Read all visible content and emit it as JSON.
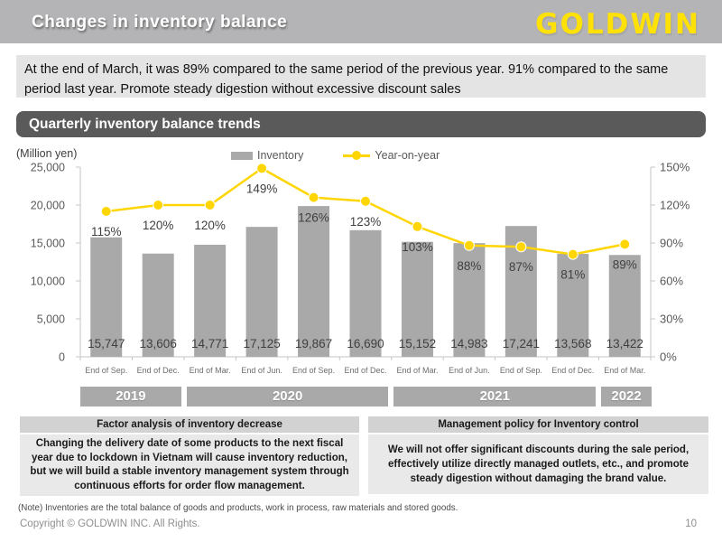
{
  "header": {
    "title": "Changes in inventory balance",
    "logo": "GOLDWIN"
  },
  "summary": {
    "text": "At the end of March, it was 89% compared to the same period of the previous year. 91% compared to the same period last year. Promote steady digestion without excessive discount sales"
  },
  "chart": {
    "title": "Quarterly inventory balance trends"
  },
  "chart_data": {
    "type": "bar+line",
    "title": "Quarterly inventory balance trends",
    "categories": [
      "End of Sep.",
      "End of Dec.",
      "End of Mar.",
      "End of Jun.",
      "End of Sep.",
      "End of Dec.",
      "End of Mar.",
      "End of Jun.",
      "End of Sep.",
      "End of Dec.",
      "End of Mar."
    ],
    "series": [
      {
        "name": "Inventory",
        "type": "bar",
        "axis": "left",
        "values": [
          15747,
          13606,
          14771,
          17125,
          19867,
          16690,
          15152,
          14983,
          17241,
          13568,
          13422
        ],
        "labels": [
          "15,747",
          "13,606",
          "14,771",
          "17,125",
          "19,867",
          "16,690",
          "15,152",
          "14,983",
          "17,241",
          "13,568",
          "13,422"
        ]
      },
      {
        "name": "Year-on-year",
        "type": "line",
        "axis": "right",
        "values": [
          115,
          120,
          120,
          149,
          126,
          123,
          103,
          88,
          87,
          81,
          89
        ],
        "labels": [
          "115%",
          "120%",
          "120%",
          "149%",
          "126%",
          "123%",
          "103%",
          "88%",
          "87%",
          "81%",
          "89%"
        ]
      }
    ],
    "left_axis": {
      "title": "(Million yen)",
      "min": 0,
      "max": 25000,
      "tick_labels": [
        "25,000",
        "20,000",
        "15,000",
        "10,000",
        "5,000",
        "0"
      ]
    },
    "right_axis": {
      "min": 0,
      "max": 150,
      "tick_labels": [
        "150%",
        "120%",
        "90%",
        "60%",
        "30%",
        "0%"
      ]
    },
    "year_groups": [
      {
        "label": "2019",
        "span": 2
      },
      {
        "label": "2020",
        "span": 4
      },
      {
        "label": "2021",
        "span": 4
      },
      {
        "label": "2022",
        "span": 1
      }
    ],
    "colors": {
      "bar": "#a9a9a9",
      "line": "#ffd502",
      "axis": "#c6c6c6",
      "tick_text": "#595959",
      "value_text": "#3f3f3f"
    },
    "grid": false,
    "legend_position": "top-center"
  },
  "factor_box": {
    "title": "Factor analysis of inventory decrease",
    "body": "Changing the delivery date of some products to the next fiscal year due to lockdown in Vietnam will cause inventory reduction, but we will build a stable inventory management system through continuous efforts for order flow management."
  },
  "policy_box": {
    "title": "Management policy for Inventory control",
    "body": "We will not offer significant discounts during the sale period, effectively utilize directly managed outlets, etc., and promote steady digestion without damaging the brand value."
  },
  "note": "(Note) Inventories are the total balance of goods and products, work in process, raw materials and stored goods.",
  "footer": {
    "copyright": "Copyright © GOLDWIN INC. All Rights.",
    "page": "10"
  }
}
